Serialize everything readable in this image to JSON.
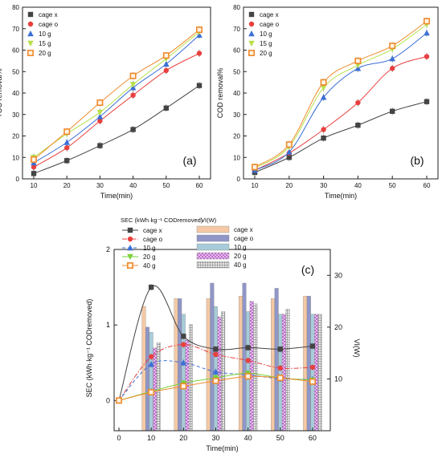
{
  "chart_data": [
    {
      "id": "a",
      "type": "line",
      "panel_label": "(a)",
      "xlabel": "Time(min)",
      "ylabel": "TOC removal%",
      "xlim": [
        10,
        60
      ],
      "ylim": [
        0,
        80
      ],
      "x_ticks": [
        10,
        20,
        30,
        40,
        50,
        60
      ],
      "y_ticks": [
        0,
        10,
        20,
        30,
        40,
        50,
        60,
        70,
        80
      ],
      "x": [
        10,
        20,
        30,
        40,
        50,
        60
      ],
      "grid": false,
      "legend_position": "top-left",
      "series": [
        {
          "name": "cage x",
          "color": "#444444",
          "marker": "square",
          "values": [
            2.5,
            8.5,
            15.5,
            23,
            33,
            43.5
          ]
        },
        {
          "name": "cage o",
          "color": "#e8403f",
          "marker": "circle",
          "values": [
            5.5,
            14.5,
            27,
            39,
            50.5,
            58.5
          ]
        },
        {
          "name": "10 g",
          "color": "#3b6fd6",
          "marker": "triangle-up",
          "values": [
            7.5,
            17,
            29,
            42.5,
            53.5,
            67
          ]
        },
        {
          "name": "15 g",
          "color": "#b8e04a",
          "marker": "triangle-down",
          "values": [
            10,
            21,
            31,
            44,
            56,
            68.5
          ]
        },
        {
          "name": "20 g",
          "color": "#f08a2c",
          "marker": "square-open",
          "values": [
            9,
            22,
            35.5,
            48,
            57.5,
            69.5
          ]
        }
      ]
    },
    {
      "id": "b",
      "type": "line",
      "panel_label": "(b)",
      "xlabel": "Time(min)",
      "ylabel": "COD removal%",
      "xlim": [
        10,
        60
      ],
      "ylim": [
        0,
        80
      ],
      "x_ticks": [
        10,
        20,
        30,
        40,
        50,
        60
      ],
      "y_ticks": [
        0,
        10,
        20,
        30,
        40,
        50,
        60,
        70,
        80
      ],
      "x": [
        10,
        20,
        30,
        40,
        50,
        60
      ],
      "grid": false,
      "legend_position": "top-left",
      "series": [
        {
          "name": "cage x",
          "color": "#444444",
          "marker": "square",
          "values": [
            3,
            10,
            19,
            25,
            31.5,
            36
          ]
        },
        {
          "name": "cage o",
          "color": "#e8403f",
          "marker": "circle",
          "values": [
            4,
            12,
            23,
            35.5,
            51.5,
            57
          ]
        },
        {
          "name": "10 g",
          "color": "#3b6fd6",
          "marker": "triangle-up",
          "values": [
            4,
            12.5,
            38,
            51.5,
            56,
            68
          ]
        },
        {
          "name": "15 g",
          "color": "#b8e04a",
          "marker": "triangle-down",
          "values": [
            5,
            15,
            42.5,
            53,
            60.5,
            72
          ]
        },
        {
          "name": "20 g",
          "color": "#f08a2c",
          "marker": "square-open",
          "values": [
            5.5,
            16,
            45,
            55,
            62,
            73.5
          ]
        }
      ]
    },
    {
      "id": "c",
      "type": "bar",
      "panel_label": "(c)",
      "xlabel": "Time(min)",
      "ylabel_left": "SEC (kWh·kg⁻¹ CODremoved)",
      "ylabel_right": "VI(W)",
      "xlim": [
        0,
        65
      ],
      "ylim_left": [
        -0.4,
        2
      ],
      "ylim_right": [
        0,
        35
      ],
      "x_ticks": [
        0,
        10,
        20,
        30,
        40,
        50,
        60
      ],
      "y_ticks_left": [
        0,
        1,
        2
      ],
      "y_ticks_right": [
        10,
        20,
        30
      ],
      "legend_title_lines": "SEC (kWh·kg⁻¹ CODremoved)",
      "legend_title_bars": "VI(W)",
      "x": [
        0,
        10,
        20,
        30,
        40,
        50,
        60
      ],
      "line_series": [
        {
          "name": "cage x",
          "color": "#444444",
          "marker": "square",
          "style": "solid",
          "values": [
            0,
            1.5,
            0.85,
            0.68,
            0.7,
            0.68,
            0.72
          ]
        },
        {
          "name": "cage o",
          "color": "#e8403f",
          "marker": "circle",
          "style": "dashdot",
          "values": [
            0,
            0.58,
            0.74,
            0.61,
            0.53,
            0.43,
            0.44
          ]
        },
        {
          "name": "10 g",
          "color": "#3b6fd6",
          "marker": "triangle-up",
          "style": "dashed",
          "values": [
            0,
            0.48,
            0.5,
            0.38,
            0.34,
            0.29,
            0.28
          ]
        },
        {
          "name": "20 g",
          "color": "#7ad23a",
          "marker": "triangle-down",
          "style": "solid",
          "values": [
            0,
            0.12,
            0.23,
            0.3,
            0.36,
            0.3,
            0.27
          ]
        },
        {
          "name": "40 g",
          "color": "#f08a2c",
          "marker": "square-open",
          "style": "solid",
          "values": [
            0,
            0.11,
            0.19,
            0.26,
            0.32,
            0.3,
            0.25
          ]
        }
      ],
      "bar_categories": [
        10,
        20,
        30,
        40,
        50,
        60
      ],
      "bar_series": [
        {
          "name": "cage x",
          "fill": "#f5c9a5",
          "pattern": "none",
          "values": [
            24,
            25.5,
            25.5,
            26,
            25.5,
            26
          ]
        },
        {
          "name": "cage o",
          "fill": "#8f96c8",
          "pattern": "none",
          "values": [
            20,
            25.5,
            28.5,
            28.5,
            27.5,
            26
          ]
        },
        {
          "name": "10 g",
          "fill": "#a8ccd9",
          "pattern": "none",
          "values": [
            19,
            22.5,
            24,
            23,
            22.5,
            22.5
          ]
        },
        {
          "name": "20 g",
          "fill": "#e9c4ee",
          "pattern": "crosshatch",
          "values": [
            16,
            17.5,
            22,
            25,
            22.5,
            22.5
          ]
        },
        {
          "name": "40 g",
          "fill": "#c9c9c9",
          "pattern": "grid",
          "values": [
            17,
            20.5,
            23,
            24.5,
            23.5,
            22.5
          ]
        }
      ]
    }
  ]
}
